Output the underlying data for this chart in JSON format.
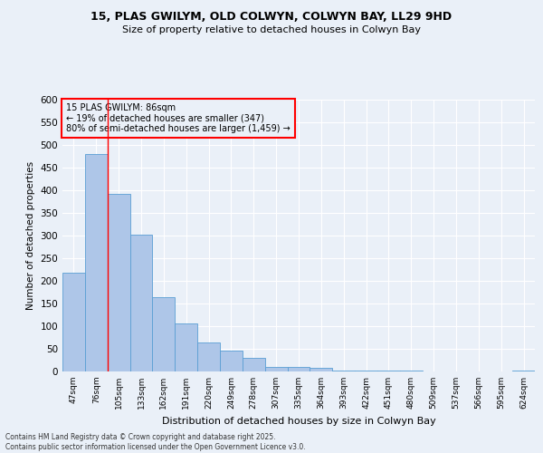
{
  "title_line1": "15, PLAS GWILYM, OLD COLWYN, COLWYN BAY, LL29 9HD",
  "title_line2": "Size of property relative to detached houses in Colwyn Bay",
  "xlabel": "Distribution of detached houses by size in Colwyn Bay",
  "ylabel": "Number of detached properties",
  "categories": [
    "47sqm",
    "76sqm",
    "105sqm",
    "133sqm",
    "162sqm",
    "191sqm",
    "220sqm",
    "249sqm",
    "278sqm",
    "307sqm",
    "335sqm",
    "364sqm",
    "393sqm",
    "422sqm",
    "451sqm",
    "480sqm",
    "509sqm",
    "537sqm",
    "566sqm",
    "595sqm",
    "624sqm"
  ],
  "values": [
    218,
    480,
    393,
    302,
    165,
    106,
    65,
    47,
    30,
    10,
    10,
    8,
    3,
    3,
    2,
    2,
    0,
    1,
    0,
    0,
    2
  ],
  "bar_color": "#aec6e8",
  "bar_edgecolor": "#5a9fd4",
  "bg_color": "#eaf0f8",
  "grid_color": "#ffffff",
  "annotation_box_text": "15 PLAS GWILYM: 86sqm\n← 19% of detached houses are smaller (347)\n80% of semi-detached houses are larger (1,459) →",
  "annotation_box_edgecolor": "red",
  "red_line_x": 1.5,
  "ylim": [
    0,
    600
  ],
  "yticks": [
    0,
    50,
    100,
    150,
    200,
    250,
    300,
    350,
    400,
    450,
    500,
    550,
    600
  ],
  "footer_line1": "Contains HM Land Registry data © Crown copyright and database right 2025.",
  "footer_line2": "Contains public sector information licensed under the Open Government Licence v3.0."
}
